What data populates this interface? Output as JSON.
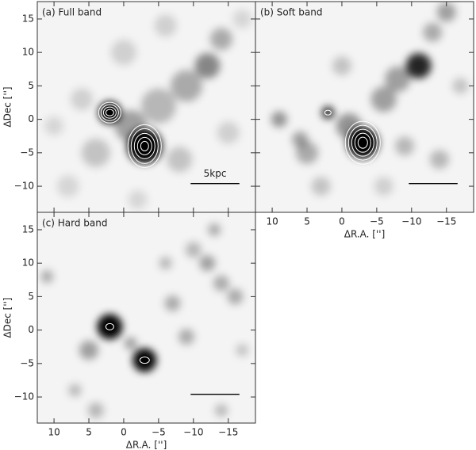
{
  "panels": [
    {
      "label": "(a) Full band",
      "scalebar_label": "5kpc"
    },
    {
      "label": "(b) Soft band"
    },
    {
      "label": "(c) Hard band"
    }
  ],
  "axes": {
    "xlim": [
      12.4,
      -18.9
    ],
    "ylim": [
      -13.9,
      17.6
    ],
    "xticks": [
      10,
      5,
      0,
      {
        "value": -5,
        "label": "−5"
      },
      {
        "value": -10,
        "label": "−10"
      },
      {
        "value": -15,
        "label": "−15"
      }
    ],
    "yticks": [
      15,
      10,
      5,
      0,
      {
        "value": -5,
        "label": "−5"
      },
      {
        "value": -10,
        "label": "−10"
      }
    ],
    "xlabel": "ΔR.A. ['']",
    "ylabel": "ΔDec ['']"
  }
}
